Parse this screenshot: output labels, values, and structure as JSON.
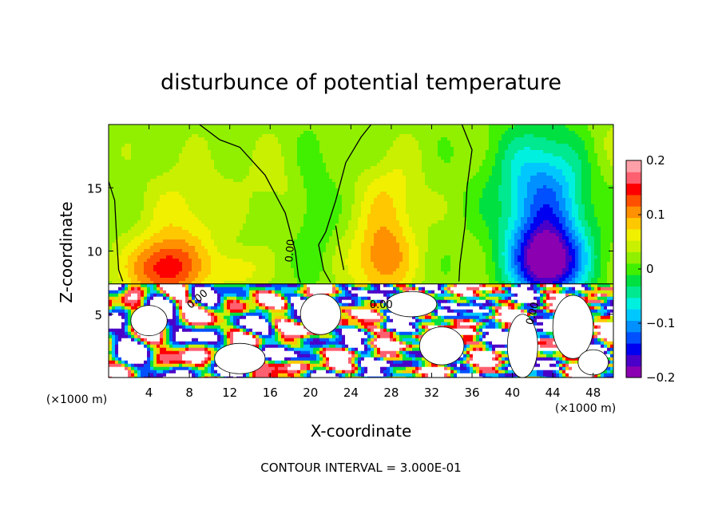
{
  "chart_data": {
    "type": "heatmap",
    "title": "disturbunce of potential temperature",
    "xlabel": "X-coordinate",
    "ylabel": "Z-coordinate",
    "x_unit": "(×1000 m)",
    "x_unit_right": "(×1000 m)",
    "footer": "CONTOUR INTERVAL = 3.000E-01",
    "xlim": [
      0,
      50
    ],
    "ylim": [
      0,
      20
    ],
    "x_ticks": [
      4,
      8,
      12,
      16,
      20,
      24,
      28,
      32,
      36,
      40,
      44,
      48
    ],
    "y_ticks": [
      5,
      10,
      15
    ],
    "colorbar": {
      "range": [
        -0.2,
        0.2
      ],
      "ticks": [
        0.2,
        0.1,
        0,
        -0.1,
        -0.2
      ],
      "tick_labels": [
        "0.2",
        "0.1",
        "0",
        "−0.1",
        "−0.2"
      ],
      "colors": [
        "#8b00b0",
        "#4a00c8",
        "#0000f0",
        "#0050ff",
        "#0090ff",
        "#00c8ff",
        "#00f0e0",
        "#00e890",
        "#00e040",
        "#40f000",
        "#90f000",
        "#c8f000",
        "#f0f000",
        "#ffc800",
        "#ff9000",
        "#ff5000",
        "#ff0000",
        "#ff6070",
        "#ffa0a8"
      ]
    },
    "contour_labels": [
      {
        "text": "0.00",
        "x": 18.3,
        "z": 10.0,
        "rotate": -85
      },
      {
        "text": "0.00",
        "x": 9.0,
        "z": 6.0,
        "rotate": -40
      },
      {
        "text": "0.00",
        "x": 27.0,
        "z": 5.5,
        "rotate": 0
      },
      {
        "text": "0.00",
        "x": 42.3,
        "z": 5.0,
        "rotate": -75
      }
    ],
    "upper_field": {
      "z_range": [
        7.4,
        20
      ],
      "base": 0.02,
      "features": [
        {
          "x": 5.5,
          "z": 8.6,
          "sx": 3.5,
          "sz": 2.5,
          "amp": 0.13
        },
        {
          "x": 8.0,
          "z": 13.0,
          "sx": 4.0,
          "sz": 4.0,
          "amp": 0.04
        },
        {
          "x": 12.5,
          "z": 8.5,
          "sx": 2.5,
          "sz": 1.6,
          "amp": 0.05
        },
        {
          "x": 16.0,
          "z": 15.5,
          "sx": 2.5,
          "sz": 3.0,
          "amp": 0.02
        },
        {
          "x": 27.0,
          "z": 9.2,
          "sx": 3.0,
          "sz": 3.0,
          "amp": 0.09
        },
        {
          "x": 28.0,
          "z": 14.0,
          "sx": 3.0,
          "sz": 3.5,
          "amp": 0.05
        },
        {
          "x": 20.5,
          "z": 13.0,
          "sx": 1.8,
          "sz": 5.0,
          "amp": -0.03
        },
        {
          "x": 43.5,
          "z": 9.0,
          "sx": 3.5,
          "sz": 3.0,
          "amp": -0.22
        },
        {
          "x": 43.0,
          "z": 14.5,
          "sx": 4.5,
          "sz": 5.0,
          "amp": -0.13
        },
        {
          "x": 49.0,
          "z": 18.0,
          "sx": 2.5,
          "sz": 3.0,
          "amp": 0.02
        }
      ]
    },
    "lower_field": {
      "z_range": [
        0,
        7.4
      ],
      "description": "chaotic alternating strong positive/negative disturbances with saturated values"
    }
  }
}
